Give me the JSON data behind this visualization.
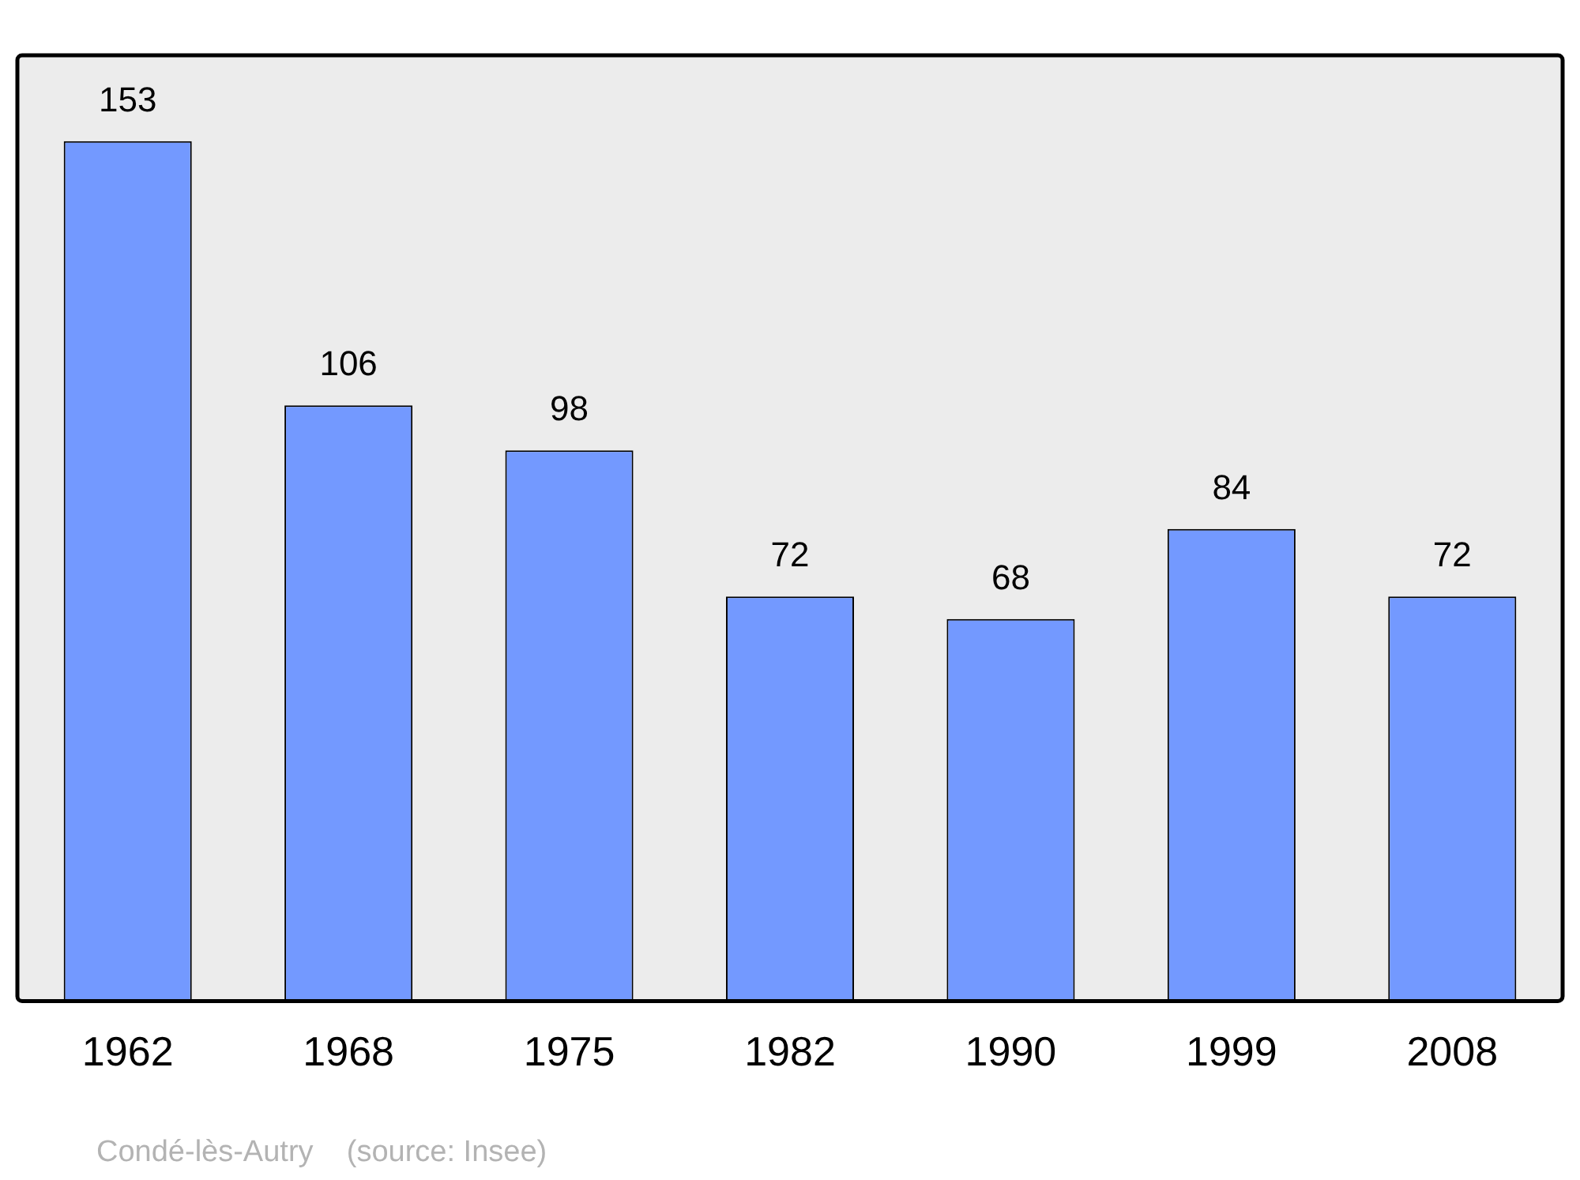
{
  "chart_data": {
    "type": "bar",
    "categories": [
      "1962",
      "1968",
      "1975",
      "1982",
      "1990",
      "1999",
      "2008"
    ],
    "values": [
      153,
      106,
      98,
      72,
      68,
      84,
      72
    ],
    "color": "#7399ff",
    "data_labels": true,
    "grid": false,
    "legend": false,
    "annotations": [
      "Condé-lès-Autry    (source: Insee)"
    ]
  }
}
